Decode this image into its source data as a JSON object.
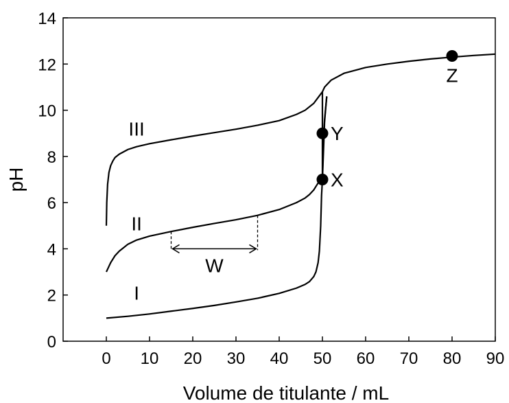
{
  "chart_data": {
    "type": "line",
    "title": "",
    "xlabel": "Volume de titulante / mL",
    "ylabel": "pH",
    "xlim": [
      -10,
      90
    ],
    "ylim": [
      0,
      14
    ],
    "xticks": [
      0,
      10,
      20,
      30,
      40,
      50,
      60,
      70,
      80,
      90
    ],
    "yticks": [
      0,
      2,
      4,
      6,
      8,
      10,
      12,
      14
    ],
    "grid": false,
    "legend": "none",
    "series": [
      {
        "label": "I",
        "color": "#000000",
        "x": [
          0,
          5,
          10,
          15,
          20,
          25,
          30,
          35,
          40,
          44,
          46,
          47,
          48,
          48.5,
          49,
          49.3,
          49.6,
          49.8,
          50,
          50.2,
          50.5,
          51
        ],
        "y": [
          1.0,
          1.08,
          1.18,
          1.3,
          1.42,
          1.55,
          1.7,
          1.86,
          2.07,
          2.3,
          2.46,
          2.58,
          2.8,
          3.0,
          3.4,
          3.9,
          5.0,
          6.3,
          7.0,
          8.5,
          9.6,
          10.6
        ]
      },
      {
        "label": "II",
        "color": "#000000",
        "x": [
          0,
          0.5,
          1,
          2,
          3,
          4,
          5,
          7,
          10,
          15,
          20,
          25,
          30,
          35,
          40,
          44,
          46,
          47,
          48,
          48.5,
          49,
          49.5,
          50,
          50.2,
          50.5,
          51
        ],
        "y": [
          3.0,
          3.2,
          3.4,
          3.7,
          3.9,
          4.05,
          4.2,
          4.38,
          4.55,
          4.75,
          4.93,
          5.1,
          5.26,
          5.45,
          5.7,
          6.0,
          6.2,
          6.35,
          6.55,
          6.7,
          6.85,
          6.93,
          7.0,
          8.0,
          9.5,
          10.6
        ]
      },
      {
        "label": "III",
        "color": "#000000",
        "x": [
          0,
          0.1,
          0.3,
          0.6,
          1,
          1.5,
          2,
          3,
          4,
          5,
          7,
          10,
          15,
          20,
          25,
          30,
          35,
          40,
          44,
          46,
          48,
          49,
          50,
          50.5,
          51,
          52,
          55,
          60,
          65,
          70,
          75,
          80,
          85,
          90
        ],
        "y": [
          5.0,
          6.0,
          6.8,
          7.3,
          7.6,
          7.8,
          7.95,
          8.1,
          8.2,
          8.3,
          8.42,
          8.55,
          8.72,
          8.88,
          9.03,
          9.18,
          9.35,
          9.55,
          9.82,
          10.0,
          10.3,
          10.55,
          10.8,
          11.0,
          11.1,
          11.3,
          11.6,
          11.85,
          12.0,
          12.12,
          12.22,
          12.3,
          12.37,
          12.43
        ]
      }
    ],
    "vertical_segment": {
      "x": 50,
      "y_from": 7,
      "y_to": 10.8
    },
    "points": [
      {
        "label": "X",
        "x": 50,
        "y": 7.0
      },
      {
        "label": "Y",
        "x": 50,
        "y": 9.0
      },
      {
        "label": "Z",
        "x": 80,
        "y": 12.35
      }
    ],
    "annotation_w": {
      "label": "W",
      "x_start": 15,
      "x_end": 35,
      "y_arrow": 4.0
    }
  }
}
